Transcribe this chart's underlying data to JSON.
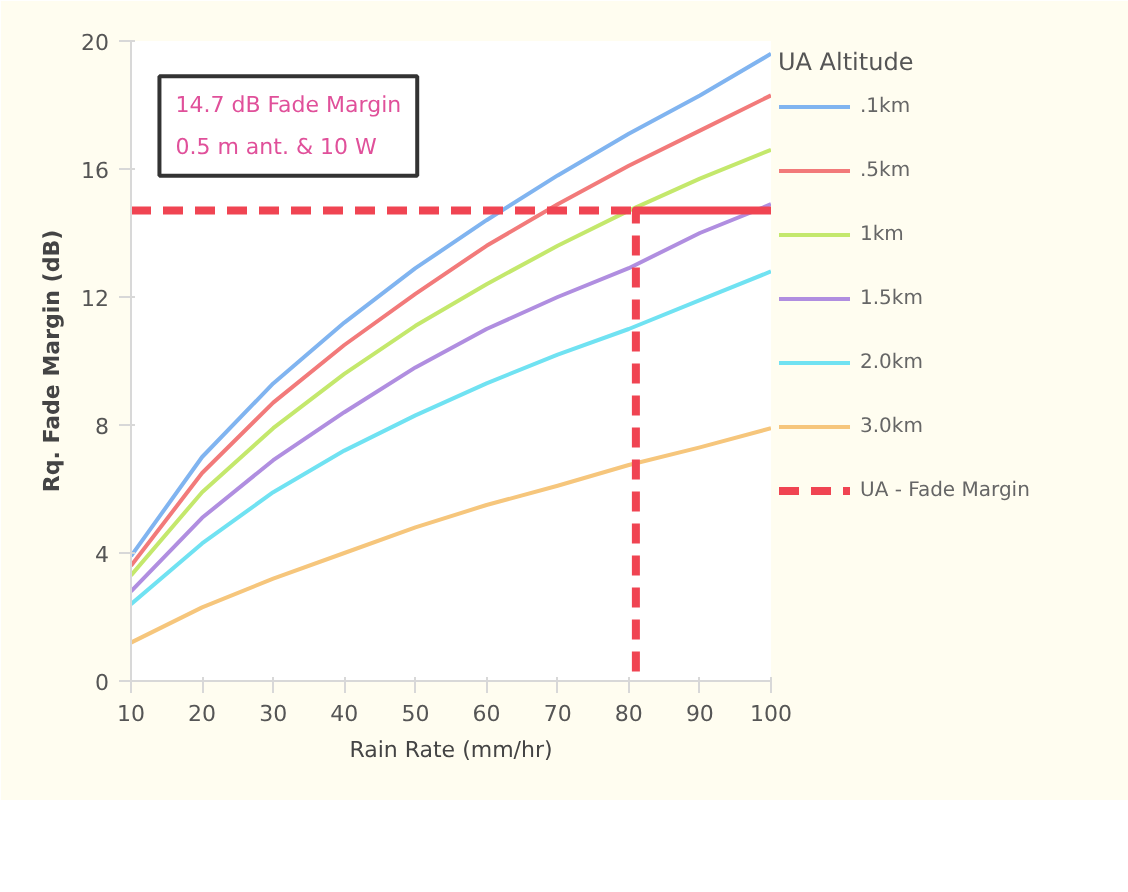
{
  "chart_data": {
    "type": "line",
    "xlabel": "Rain Rate (mm/hr)",
    "ylabel": "Rq. Fade Margin (dB)",
    "legend_title": "UA Altitude",
    "x": [
      10,
      20,
      30,
      40,
      50,
      60,
      70,
      80,
      90,
      100
    ],
    "series": [
      {
        "name": ".1km",
        "color": "#80b4f0",
        "values": [
          3.9,
          7.0,
          9.3,
          11.2,
          12.9,
          14.4,
          15.8,
          17.1,
          18.3,
          19.6
        ]
      },
      {
        "name": ".5km",
        "color": "#f27a7a",
        "values": [
          3.6,
          6.5,
          8.7,
          10.5,
          12.1,
          13.6,
          14.9,
          16.1,
          17.2,
          18.3
        ]
      },
      {
        "name": "1km",
        "color": "#c4e86c",
        "values": [
          3.3,
          5.9,
          7.9,
          9.6,
          11.1,
          12.4,
          13.6,
          14.7,
          15.7,
          16.6
        ]
      },
      {
        "name": "1.5km",
        "color": "#b08ee0",
        "values": [
          2.8,
          5.1,
          6.9,
          8.4,
          9.8,
          11.0,
          12.0,
          12.9,
          14.0,
          14.9
        ]
      },
      {
        "name": "2.0km",
        "color": "#70e2f2",
        "values": [
          2.4,
          4.3,
          5.9,
          7.2,
          8.3,
          9.3,
          10.2,
          11.0,
          11.9,
          12.8
        ]
      },
      {
        "name": "3.0km",
        "color": "#f6c67c",
        "values": [
          1.2,
          2.3,
          3.2,
          4.0,
          4.8,
          5.5,
          6.1,
          6.75,
          7.3,
          7.9
        ]
      },
      {
        "name": "UA - Fade Margin",
        "color": "#f04452",
        "line_style": "dashed",
        "x": [
          10,
          100,
          81,
          81
        ],
        "values": [
          14.7,
          14.7,
          14.7,
          0
        ]
      }
    ],
    "xlim": [
      10,
      100
    ],
    "ylim": [
      0,
      20
    ],
    "xticks": [
      10,
      20,
      30,
      40,
      50,
      60,
      70,
      80,
      90,
      100
    ],
    "yticks": [
      0,
      4,
      8,
      12,
      16,
      20
    ],
    "grid": false,
    "legend": "right",
    "marker": "none",
    "line_style": "solid",
    "annotations": [
      "14.7 dB Fade Margin\n0.5 m ant. & 10 W"
    ]
  }
}
